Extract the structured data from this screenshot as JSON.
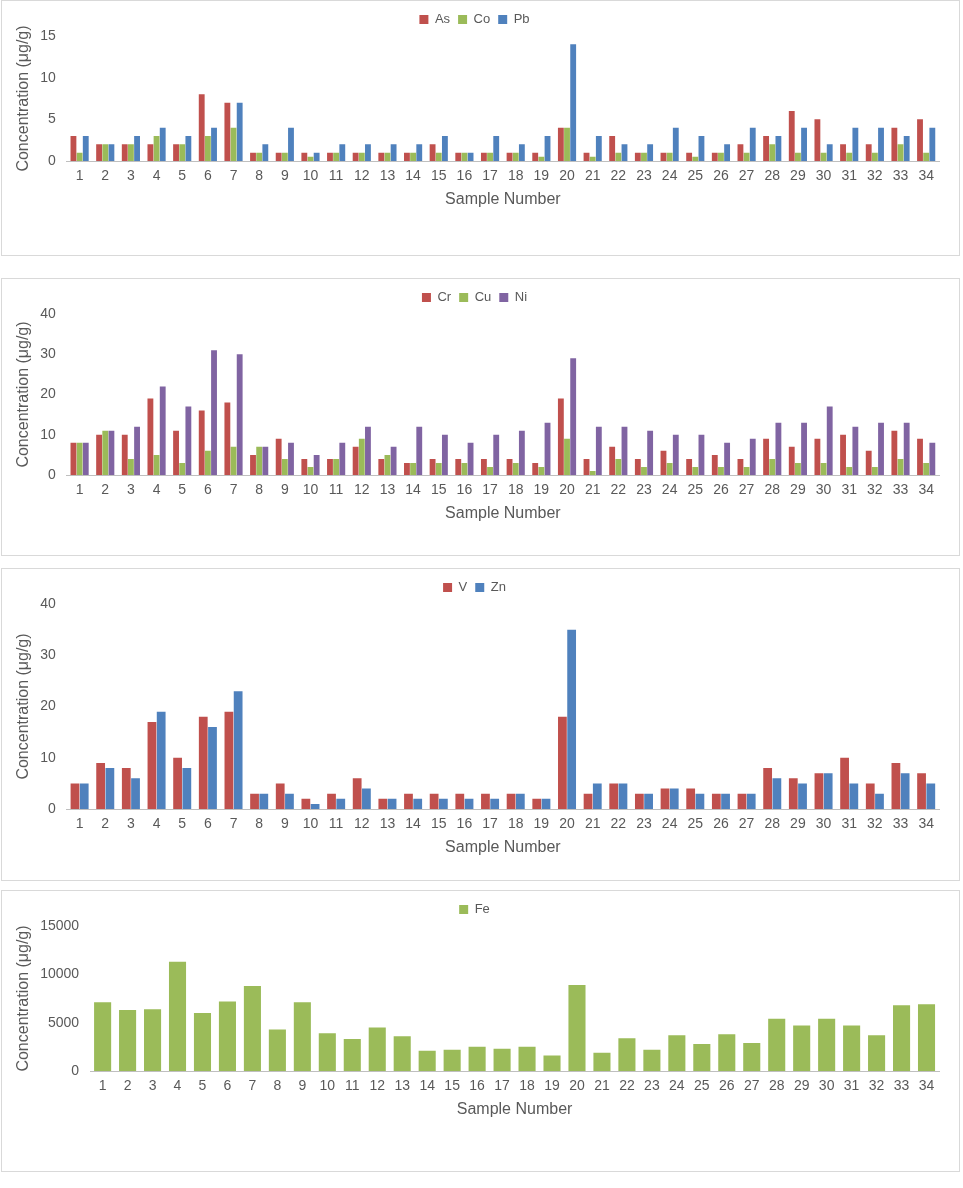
{
  "chart_data": [
    {
      "type": "bar",
      "categories": [
        "1",
        "2",
        "3",
        "4",
        "5",
        "6",
        "7",
        "8",
        "9",
        "10",
        "11",
        "12",
        "13",
        "14",
        "15",
        "16",
        "17",
        "18",
        "19",
        "20",
        "21",
        "22",
        "23",
        "24",
        "25",
        "26",
        "27",
        "28",
        "29",
        "30",
        "31",
        "32",
        "33",
        "34"
      ],
      "series": [
        {
          "name": "As",
          "color": "#c0504d",
          "values": [
            3,
            2,
            2,
            2,
            2,
            8,
            7,
            1,
            1,
            1,
            1,
            1,
            1,
            1,
            2,
            1,
            1,
            1,
            1,
            4,
            1,
            3,
            1,
            1,
            1,
            1,
            2,
            3,
            6,
            5,
            2,
            2,
            4,
            5
          ]
        },
        {
          "name": "Co",
          "color": "#9bbb59",
          "values": [
            1,
            2,
            2,
            3,
            2,
            3,
            4,
            1,
            1,
            0.5,
            1,
            1,
            1,
            1,
            1,
            1,
            1,
            1,
            0.5,
            4,
            0.5,
            1,
            1,
            1,
            0.5,
            1,
            1,
            2,
            1,
            1,
            1,
            1,
            2,
            1
          ]
        },
        {
          "name": "Pb",
          "color": "#4f81bd",
          "values": [
            3,
            2,
            3,
            4,
            3,
            4,
            7,
            2,
            4,
            1,
            2,
            2,
            2,
            2,
            3,
            1,
            3,
            2,
            3,
            14,
            3,
            2,
            2,
            4,
            3,
            2,
            4,
            3,
            4,
            2,
            4,
            4,
            3,
            4
          ]
        }
      ],
      "x_label": "Sample Number",
      "y_label": "Concentration (μg/g)",
      "ylim": [
        0,
        15
      ],
      "yticks": [
        0,
        5,
        10,
        15
      ],
      "grid": false,
      "legend": "top"
    },
    {
      "type": "bar",
      "categories": [
        "1",
        "2",
        "3",
        "4",
        "5",
        "6",
        "7",
        "8",
        "9",
        "10",
        "11",
        "12",
        "13",
        "14",
        "15",
        "16",
        "17",
        "18",
        "19",
        "20",
        "21",
        "22",
        "23",
        "24",
        "25",
        "26",
        "27",
        "28",
        "29",
        "30",
        "31",
        "32",
        "33",
        "34"
      ],
      "series": [
        {
          "name": "Cr",
          "color": "#c0504d",
          "values": [
            8,
            10,
            10,
            19,
            11,
            16,
            18,
            5,
            9,
            4,
            4,
            7,
            4,
            3,
            4,
            4,
            4,
            4,
            3,
            19,
            4,
            7,
            4,
            6,
            4,
            5,
            4,
            9,
            7,
            9,
            10,
            6,
            11,
            9
          ]
        },
        {
          "name": "Cu",
          "color": "#9bbb59",
          "values": [
            8,
            11,
            4,
            5,
            3,
            6,
            7,
            7,
            4,
            2,
            4,
            9,
            5,
            3,
            3,
            3,
            2,
            3,
            2,
            9,
            1,
            4,
            2,
            3,
            2,
            2,
            2,
            4,
            3,
            3,
            2,
            2,
            4,
            3
          ]
        },
        {
          "name": "Ni",
          "color": "#8064a2",
          "values": [
            8,
            11,
            12,
            22,
            17,
            31,
            30,
            7,
            8,
            5,
            8,
            12,
            7,
            12,
            10,
            8,
            10,
            11,
            13,
            29,
            12,
            12,
            11,
            10,
            10,
            8,
            9,
            13,
            13,
            17,
            12,
            13,
            13,
            8
          ]
        }
      ],
      "x_label": "Sample Number",
      "y_label": "Concentration (μg/g)",
      "ylim": [
        0,
        40
      ],
      "yticks": [
        0,
        10,
        20,
        30,
        40
      ],
      "grid": false,
      "legend": "top"
    },
    {
      "type": "bar",
      "categories": [
        "1",
        "2",
        "3",
        "4",
        "5",
        "6",
        "7",
        "8",
        "9",
        "10",
        "11",
        "12",
        "13",
        "14",
        "15",
        "16",
        "17",
        "18",
        "19",
        "20",
        "21",
        "22",
        "23",
        "24",
        "25",
        "26",
        "27",
        "28",
        "29",
        "30",
        "31",
        "32",
        "33",
        "34"
      ],
      "series": [
        {
          "name": "V",
          "color": "#c0504d",
          "values": [
            5,
            9,
            8,
            17,
            10,
            18,
            19,
            3,
            5,
            2,
            3,
            6,
            2,
            3,
            3,
            3,
            3,
            3,
            2,
            18,
            3,
            5,
            3,
            4,
            4,
            3,
            3,
            8,
            6,
            7,
            10,
            5,
            9,
            7
          ]
        },
        {
          "name": "Zn",
          "color": "#4f81bd",
          "values": [
            5,
            8,
            6,
            19,
            8,
            16,
            23,
            3,
            3,
            1,
            2,
            4,
            2,
            2,
            2,
            2,
            2,
            3,
            2,
            35,
            5,
            5,
            3,
            4,
            3,
            3,
            3,
            6,
            5,
            7,
            5,
            3,
            7,
            5
          ]
        }
      ],
      "x_label": "Sample Number",
      "y_label": "Concentration (μg/g)",
      "ylim": [
        0,
        40
      ],
      "yticks": [
        0,
        10,
        20,
        30,
        40
      ],
      "grid": false,
      "legend": "top"
    },
    {
      "type": "bar",
      "categories": [
        "1",
        "2",
        "3",
        "4",
        "5",
        "6",
        "7",
        "8",
        "9",
        "10",
        "11",
        "12",
        "13",
        "14",
        "15",
        "16",
        "17",
        "18",
        "19",
        "20",
        "21",
        "22",
        "23",
        "24",
        "25",
        "26",
        "27",
        "28",
        "29",
        "30",
        "31",
        "32",
        "33",
        "34"
      ],
      "series": [
        {
          "name": "Fe",
          "color": "#9bbb59",
          "values": [
            7100,
            6300,
            6400,
            11300,
            6000,
            7200,
            8800,
            4300,
            7100,
            3900,
            3300,
            4500,
            3600,
            2100,
            2200,
            2500,
            2300,
            2500,
            1600,
            8900,
            1900,
            3400,
            2200,
            3700,
            2800,
            3800,
            2900,
            5400,
            4700,
            5400,
            4700,
            3700,
            6800,
            6900
          ]
        }
      ],
      "x_label": "Sample Number",
      "y_label": "Concentration (μg/g)",
      "ylim": [
        0,
        15000
      ],
      "yticks": [
        0,
        5000,
        10000,
        15000
      ],
      "grid": false,
      "legend": "top"
    }
  ]
}
